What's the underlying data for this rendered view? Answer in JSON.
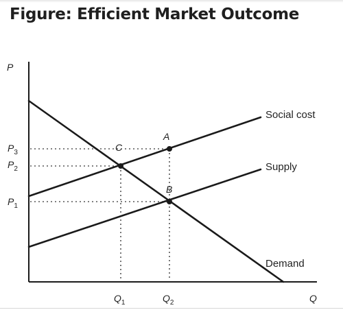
{
  "title": "Figure: Efficient Market Outcome",
  "axes": {
    "y_label": "P",
    "x_label": "Q"
  },
  "curves": {
    "social_cost": "Social cost",
    "supply": "Supply",
    "demand": "Demand"
  },
  "points": {
    "a": "A",
    "b": "B",
    "c": "C"
  },
  "price_levels": {
    "p3": {
      "letter": "P",
      "sub": "3"
    },
    "p2": {
      "letter": "P",
      "sub": "2"
    },
    "p1": {
      "letter": "P",
      "sub": "1"
    }
  },
  "quantity_levels": {
    "q1": {
      "letter": "Q",
      "sub": "1"
    },
    "q2": {
      "letter": "Q",
      "sub": "2"
    }
  },
  "colors": {
    "line": "#1a1a1a",
    "dots": "#555555",
    "text": "#222222"
  }
}
